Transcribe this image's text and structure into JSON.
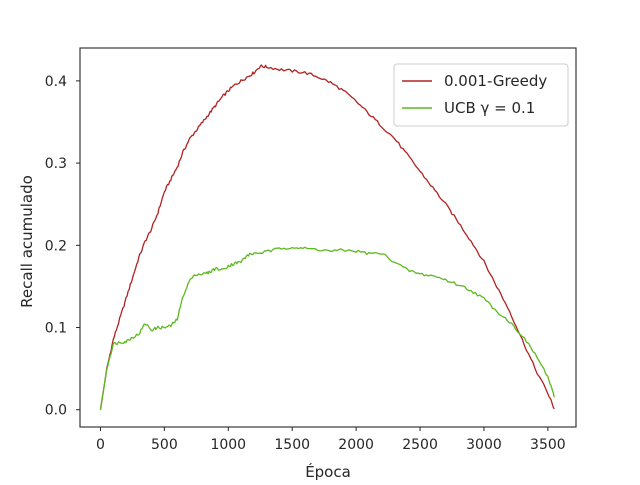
{
  "chart_data": {
    "type": "line",
    "xlabel": "Época",
    "ylabel": "Recall acumulado",
    "xlim": [
      -160,
      3720
    ],
    "ylim": [
      -0.021,
      0.44
    ],
    "xticks": [
      0,
      500,
      1000,
      1500,
      2000,
      2500,
      3000,
      3500
    ],
    "yticks": [
      0.0,
      0.1,
      0.2,
      0.3,
      0.4
    ],
    "xtick_labels": [
      "0",
      "500",
      "1000",
      "1500",
      "2000",
      "2500",
      "3000",
      "3500"
    ],
    "ytick_labels": [
      "0.0",
      "0.1",
      "0.2",
      "0.3",
      "0.4"
    ],
    "grid": false,
    "legend_position": "top-right",
    "series": [
      {
        "name": "0.001-Greedy",
        "color": "#b22222",
        "x": [
          0,
          50,
          100,
          150,
          200,
          250,
          300,
          350,
          400,
          450,
          500,
          550,
          600,
          650,
          700,
          750,
          800,
          850,
          900,
          950,
          1000,
          1050,
          1100,
          1150,
          1200,
          1250,
          1300,
          1400,
          1500,
          1600,
          1700,
          1800,
          1900,
          2000,
          2100,
          2200,
          2300,
          2400,
          2500,
          2600,
          2700,
          2800,
          2900,
          3000,
          3100,
          3200,
          3300,
          3400,
          3500,
          3550
        ],
        "y": [
          0.0,
          0.05,
          0.085,
          0.11,
          0.135,
          0.16,
          0.185,
          0.205,
          0.22,
          0.24,
          0.265,
          0.28,
          0.295,
          0.315,
          0.33,
          0.34,
          0.35,
          0.36,
          0.37,
          0.38,
          0.388,
          0.395,
          0.4,
          0.405,
          0.41,
          0.418,
          0.417,
          0.414,
          0.412,
          0.41,
          0.405,
          0.398,
          0.388,
          0.375,
          0.36,
          0.345,
          0.33,
          0.31,
          0.29,
          0.27,
          0.25,
          0.228,
          0.205,
          0.18,
          0.15,
          0.12,
          0.085,
          0.05,
          0.02,
          0.001
        ]
      },
      {
        "name": "UCB γ = 0.1",
        "color": "#5cb91f",
        "x": [
          0,
          50,
          100,
          150,
          200,
          250,
          300,
          350,
          400,
          450,
          500,
          550,
          600,
          650,
          700,
          750,
          800,
          850,
          900,
          950,
          1000,
          1050,
          1100,
          1150,
          1200,
          1300,
          1400,
          1500,
          1600,
          1700,
          1800,
          1900,
          2000,
          2100,
          2200,
          2300,
          2400,
          2500,
          2600,
          2700,
          2800,
          2900,
          3000,
          3100,
          3200,
          3300,
          3400,
          3500,
          3550
        ],
        "y": [
          0.0,
          0.05,
          0.08,
          0.082,
          0.083,
          0.088,
          0.092,
          0.105,
          0.097,
          0.1,
          0.1,
          0.102,
          0.11,
          0.14,
          0.158,
          0.165,
          0.165,
          0.167,
          0.172,
          0.17,
          0.175,
          0.178,
          0.18,
          0.188,
          0.19,
          0.192,
          0.196,
          0.198,
          0.196,
          0.195,
          0.193,
          0.194,
          0.193,
          0.19,
          0.19,
          0.18,
          0.17,
          0.165,
          0.163,
          0.158,
          0.152,
          0.145,
          0.135,
          0.12,
          0.107,
          0.09,
          0.068,
          0.04,
          0.015
        ]
      }
    ]
  }
}
